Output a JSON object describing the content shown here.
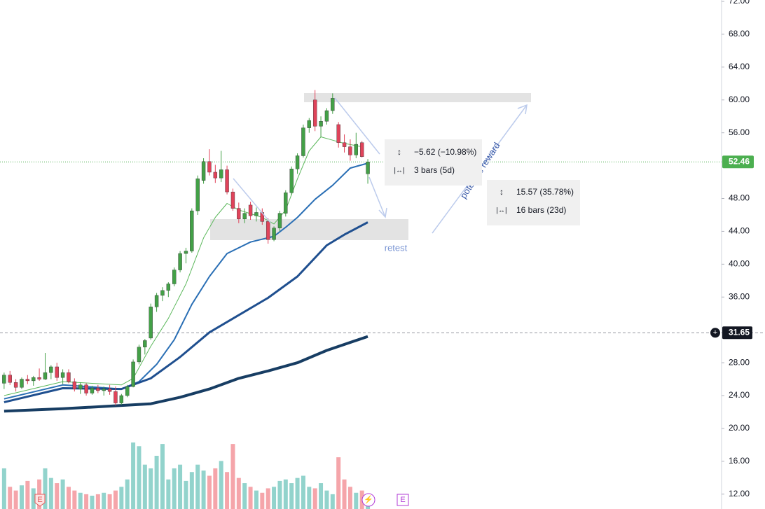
{
  "chart_data": {
    "type": "candlestick",
    "ylim": [
      10.19,
      72.17
    ],
    "xlim": [
      -0.7,
      122.3
    ],
    "yticks": [
      {
        "value": 72,
        "label": "72.00"
      },
      {
        "value": 68,
        "label": "68.00"
      },
      {
        "value": 64,
        "label": "64.00"
      },
      {
        "value": 60,
        "label": "60.00"
      },
      {
        "value": 56,
        "label": "56.00"
      },
      {
        "value": 48,
        "label": "48.00"
      },
      {
        "value": 44,
        "label": "44.00"
      },
      {
        "value": 40,
        "label": "40.00"
      },
      {
        "value": 36,
        "label": "36.00"
      },
      {
        "value": 28,
        "label": "28.00"
      },
      {
        "value": 24,
        "label": "24.00"
      },
      {
        "value": 20,
        "label": "20.00"
      },
      {
        "value": 16,
        "label": "16.00"
      },
      {
        "value": 12,
        "label": "12.00"
      }
    ],
    "up_color": "#43a047",
    "down_color": "#e0435a",
    "ohlc": [
      [
        25.5,
        26.8,
        24.8,
        26.5
      ],
      [
        26.5,
        27.0,
        25.3,
        25.6
      ],
      [
        25.6,
        26.0,
        24.5,
        25.0
      ],
      [
        25.0,
        26.2,
        24.8,
        26.0
      ],
      [
        26.0,
        26.5,
        25.4,
        25.8
      ],
      [
        25.8,
        26.4,
        25.2,
        26.2
      ],
      [
        26.2,
        27.3,
        25.8,
        26.0
      ],
      [
        26.0,
        29.2,
        25.9,
        26.8
      ],
      [
        26.8,
        27.7,
        26.0,
        27.5
      ],
      [
        27.5,
        28.0,
        25.8,
        26.2
      ],
      [
        26.2,
        27.2,
        25.4,
        26.8
      ],
      [
        26.8,
        27.2,
        25.5,
        25.7
      ],
      [
        25.7,
        26.1,
        24.5,
        24.8
      ],
      [
        24.8,
        25.6,
        24.2,
        25.3
      ],
      [
        25.3,
        25.5,
        24.0,
        24.3
      ],
      [
        24.3,
        25.2,
        24.1,
        24.9
      ],
      [
        24.9,
        25.3,
        24.3,
        24.6
      ],
      [
        24.6,
        25.1,
        24.0,
        24.8
      ],
      [
        24.8,
        25.3,
        24.1,
        24.5
      ],
      [
        24.5,
        25.1,
        22.8,
        23.1
      ],
      [
        23.1,
        24.2,
        22.9,
        24.0
      ],
      [
        24.0,
        25.3,
        23.8,
        25.1
      ],
      [
        25.1,
        28.4,
        25.0,
        28.1
      ],
      [
        28.1,
        30.2,
        27.8,
        29.9
      ],
      [
        29.9,
        30.9,
        29.0,
        30.7
      ],
      [
        31.0,
        35.2,
        30.8,
        34.8
      ],
      [
        34.8,
        36.5,
        34.2,
        36.2
      ],
      [
        36.2,
        37.2,
        35.5,
        36.8
      ],
      [
        36.8,
        37.8,
        36.0,
        37.6
      ],
      [
        37.6,
        39.6,
        37.3,
        39.3
      ],
      [
        39.3,
        41.6,
        39.0,
        41.3
      ],
      [
        41.3,
        42.0,
        40.1,
        41.6
      ],
      [
        41.6,
        46.8,
        41.4,
        46.5
      ],
      [
        46.5,
        50.8,
        46.0,
        50.4
      ],
      [
        50.2,
        52.9,
        49.8,
        52.5
      ],
      [
        52.5,
        54.0,
        50.8,
        51.2
      ],
      [
        51.2,
        52.1,
        49.9,
        50.5
      ],
      [
        50.5,
        53.8,
        50.0,
        51.5
      ],
      [
        51.5,
        52.0,
        48.5,
        48.8
      ],
      [
        48.8,
        49.2,
        46.5,
        46.8
      ],
      [
        46.8,
        47.5,
        45.0,
        45.5
      ],
      [
        45.5,
        46.8,
        45.0,
        46.2
      ],
      [
        47.2,
        47.6,
        45.4,
        45.9
      ],
      [
        45.9,
        46.9,
        45.2,
        46.3
      ],
      [
        46.3,
        46.8,
        44.8,
        45.2
      ],
      [
        45.2,
        45.6,
        42.5,
        43.0
      ],
      [
        43.0,
        44.6,
        42.8,
        44.4
      ],
      [
        44.4,
        46.5,
        44.0,
        46.2
      ],
      [
        46.2,
        49.0,
        45.8,
        48.7
      ],
      [
        48.7,
        51.9,
        48.4,
        51.6
      ],
      [
        51.6,
        53.5,
        51.0,
        53.2
      ],
      [
        53.2,
        57.0,
        53.0,
        56.6
      ],
      [
        56.6,
        57.8,
        56.0,
        57.5
      ],
      [
        60.0,
        61.2,
        56.2,
        56.8
      ],
      [
        56.8,
        58.0,
        55.5,
        57.4
      ],
      [
        57.4,
        59.0,
        57.0,
        58.7
      ],
      [
        58.7,
        60.8,
        58.3,
        60.2
      ],
      [
        57.0,
        57.3,
        54.2,
        54.8
      ],
      [
        54.8,
        55.8,
        53.6,
        54.3
      ],
      [
        54.3,
        55.2,
        52.6,
        53.3
      ],
      [
        53.3,
        56.0,
        52.9,
        54.6
      ],
      [
        54.8,
        55.0,
        53.0,
        53.1
      ],
      [
        51.0,
        52.8,
        49.8,
        52.46
      ]
    ],
    "volume": [
      55,
      30,
      25,
      32,
      38,
      28,
      40,
      55,
      42,
      35,
      40,
      30,
      25,
      22,
      20,
      18,
      20,
      22,
      20,
      25,
      30,
      40,
      90,
      85,
      60,
      55,
      72,
      88,
      40,
      55,
      60,
      38,
      50,
      60,
      52,
      45,
      55,
      65,
      50,
      88,
      42,
      35,
      30,
      25,
      22,
      28,
      30,
      38,
      40,
      35,
      42,
      45,
      30,
      28,
      35,
      25,
      20,
      70,
      40,
      30,
      22,
      25,
      18
    ],
    "volume_up_color": "#92d3cc",
    "volume_down_color": "#f5a5aa",
    "series": [
      {
        "color": "#5cb85c",
        "width": 1,
        "x": [
          0,
          10,
          20,
          22,
          25,
          28,
          31,
          34,
          36,
          38,
          40,
          44,
          46,
          48,
          50,
          52,
          54,
          56,
          58,
          61
        ],
        "values": [
          24.0,
          25.7,
          25.3,
          26.1,
          30.0,
          33.4,
          37.6,
          43.2,
          45.7,
          47.4,
          46.6,
          45.7,
          44.9,
          46.6,
          50.4,
          53.8,
          55.5,
          55.1,
          54.7,
          54.3
        ]
      },
      {
        "color": "#2a6fb5",
        "width": 2,
        "x": [
          0,
          10,
          20,
          23,
          26,
          29,
          32,
          35,
          38,
          42,
          46,
          48,
          50,
          53,
          56,
          59,
          62
        ],
        "values": [
          23.6,
          25.3,
          24.8,
          25.7,
          27.8,
          30.8,
          35.1,
          38.5,
          41.3,
          42.7,
          43.4,
          44.5,
          45.7,
          47.9,
          49.6,
          51.7,
          52.3
        ]
      },
      {
        "color": "#1f4f8f",
        "width": 3,
        "x": [
          0,
          10,
          20,
          25,
          30,
          35,
          40,
          45,
          50,
          55,
          58,
          62
        ],
        "values": [
          23.2,
          24.9,
          24.8,
          26.1,
          28.7,
          31.7,
          33.8,
          35.9,
          38.5,
          42.3,
          43.6,
          45.1
        ]
      },
      {
        "color": "#173d63",
        "width": 4,
        "x": [
          0,
          10,
          20,
          25,
          30,
          35,
          40,
          45,
          50,
          55,
          62
        ],
        "values": [
          22.1,
          22.4,
          22.8,
          23.0,
          23.8,
          24.8,
          26.1,
          27.0,
          28.0,
          29.5,
          31.2
        ]
      }
    ],
    "last_price": 52.46,
    "last_price_color": "#4caf50",
    "marker_price": 31.65,
    "annotations": {
      "retest": "retest",
      "reward": "potential reward",
      "measure1_change": "−5.62 (−10.98%)",
      "measure1_bars": "3 bars (5d)",
      "measure2_change": "15.57 (35.78%)",
      "measure2_bars": "16 bars (23d)",
      "earnings": "E",
      "earnings_next": "E"
    }
  }
}
